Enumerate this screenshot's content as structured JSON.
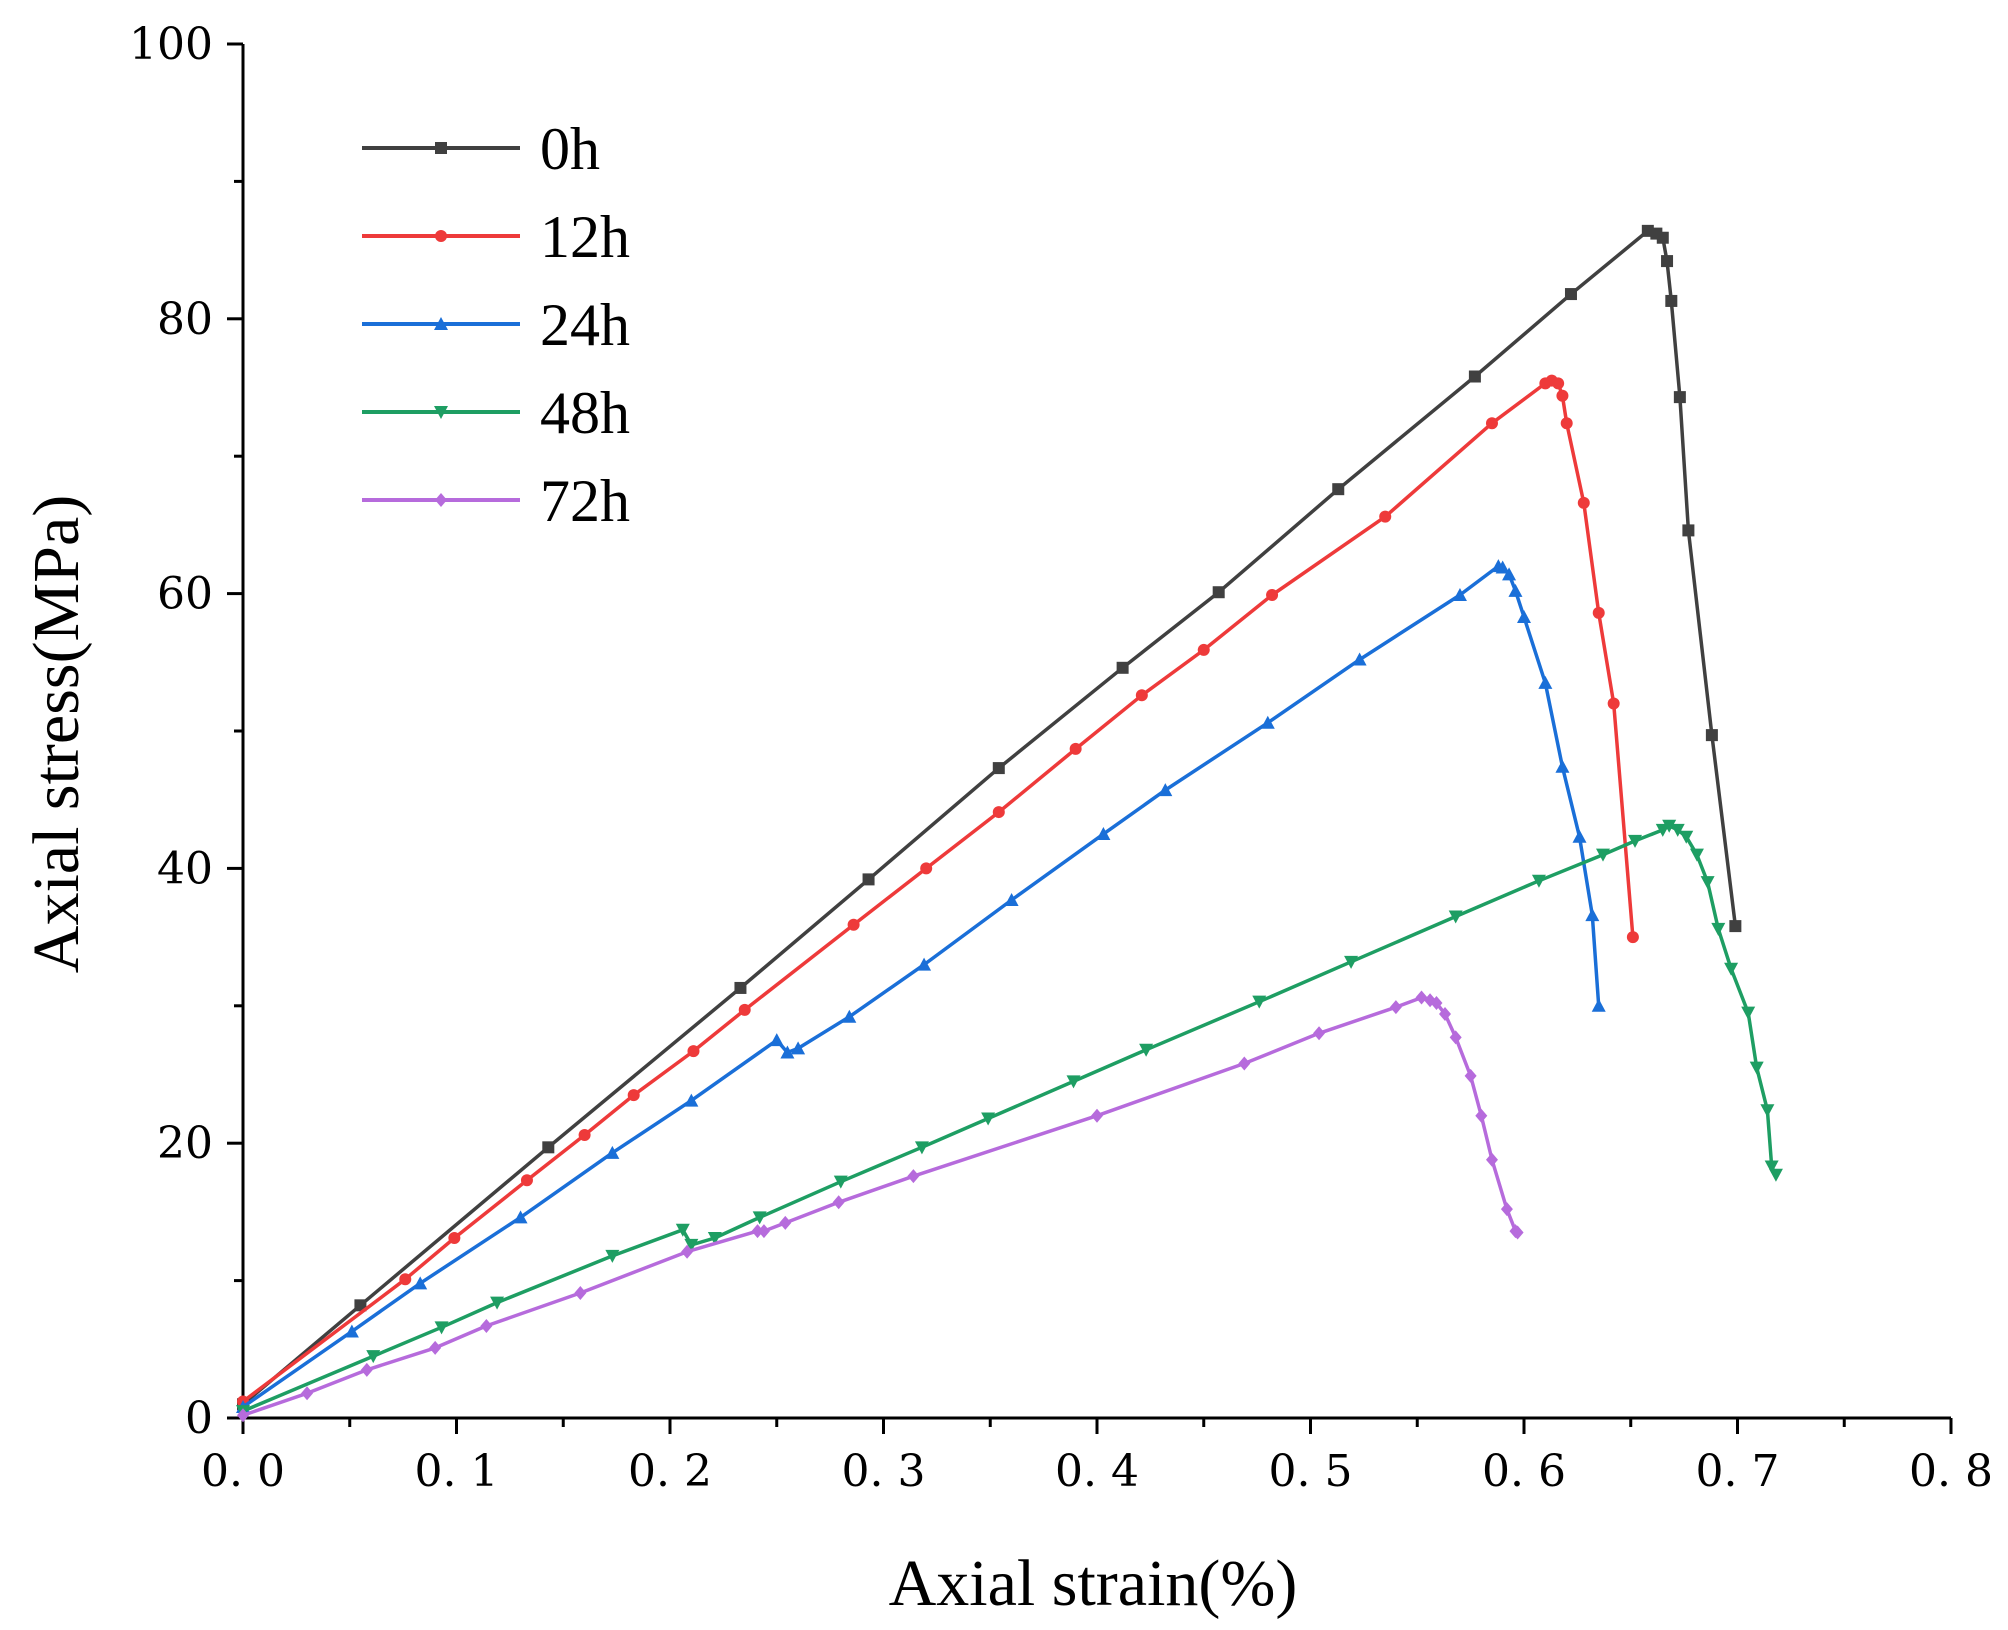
{
  "chart_data": {
    "type": "line",
    "title": "",
    "xlabel": "Axial strain(%)",
    "ylabel": "Axial stress(MPa)",
    "xlim": [
      0.0,
      0.8
    ],
    "ylim": [
      0,
      100
    ],
    "xticks": [
      "0. 0",
      "0. 1",
      "0. 2",
      "0. 3",
      "0. 4",
      "0. 5",
      "0. 6",
      "0. 7",
      "0. 8"
    ],
    "yticks": [
      "0",
      "20",
      "40",
      "60",
      "80",
      "100"
    ],
    "legend_position": "top-left",
    "grid": false,
    "series": [
      {
        "name": "0h",
        "color": "#404040",
        "marker": "square",
        "x": [
          0.0,
          0.055,
          0.143,
          0.233,
          0.293,
          0.354,
          0.412,
          0.457,
          0.513,
          0.577,
          0.622,
          0.658,
          0.662,
          0.665,
          0.667,
          0.669,
          0.673,
          0.677,
          0.688,
          0.699
        ],
        "y": [
          1.0,
          8.2,
          19.7,
          31.3,
          39.2,
          47.3,
          54.6,
          60.1,
          67.6,
          75.8,
          81.8,
          86.4,
          86.2,
          85.9,
          84.2,
          81.3,
          74.3,
          64.6,
          49.7,
          35.8
        ]
      },
      {
        "name": "12h",
        "color": "#ee3a3a",
        "marker": "circle",
        "x": [
          0.0,
          0.076,
          0.099,
          0.133,
          0.16,
          0.183,
          0.211,
          0.235,
          0.286,
          0.32,
          0.354,
          0.39,
          0.421,
          0.45,
          0.482,
          0.535,
          0.585,
          0.61,
          0.613,
          0.616,
          0.618,
          0.62,
          0.628,
          0.635,
          0.642,
          0.651
        ],
        "y": [
          1.2,
          10.1,
          13.1,
          17.3,
          20.6,
          23.5,
          26.7,
          29.7,
          35.9,
          40.0,
          44.1,
          48.7,
          52.6,
          55.9,
          59.9,
          65.6,
          72.4,
          75.3,
          75.5,
          75.3,
          74.4,
          72.4,
          66.6,
          58.6,
          52.0,
          35.0
        ]
      },
      {
        "name": "24h",
        "color": "#1a6fd8",
        "marker": "triangle-up",
        "x": [
          0.0,
          0.051,
          0.083,
          0.13,
          0.173,
          0.21,
          0.25,
          0.255,
          0.26,
          0.284,
          0.319,
          0.36,
          0.403,
          0.432,
          0.48,
          0.523,
          0.57,
          0.588,
          0.59,
          0.593,
          0.596,
          0.6,
          0.61,
          0.618,
          0.626,
          0.632,
          0.635
        ],
        "y": [
          0.8,
          6.3,
          9.8,
          14.6,
          19.3,
          23.1,
          27.5,
          26.6,
          26.9,
          29.2,
          33.0,
          37.7,
          42.5,
          45.7,
          50.6,
          55.2,
          59.9,
          62.0,
          61.9,
          61.4,
          60.2,
          58.3,
          53.5,
          47.4,
          42.3,
          36.6,
          30.0
        ]
      },
      {
        "name": "48h",
        "color": "#1e9e63",
        "marker": "triangle-down",
        "x": [
          0.0,
          0.061,
          0.093,
          0.119,
          0.173,
          0.206,
          0.21,
          0.221,
          0.242,
          0.28,
          0.318,
          0.349,
          0.389,
          0.423,
          0.476,
          0.519,
          0.568,
          0.607,
          0.637,
          0.652,
          0.665,
          0.668,
          0.672,
          0.676,
          0.681,
          0.686,
          0.691,
          0.697,
          0.705,
          0.709,
          0.714,
          0.716,
          0.718
        ],
        "y": [
          0.5,
          4.5,
          6.6,
          8.4,
          11.8,
          13.7,
          12.6,
          13.1,
          14.6,
          17.2,
          19.7,
          21.8,
          24.5,
          26.8,
          30.3,
          33.2,
          36.5,
          39.1,
          41.0,
          42.0,
          42.8,
          43.1,
          42.8,
          42.3,
          41.0,
          39.0,
          35.6,
          32.7,
          29.5,
          25.5,
          22.4,
          18.3,
          17.7
        ]
      },
      {
        "name": "72h",
        "color": "#b66bdc",
        "marker": "diamond",
        "x": [
          0.0,
          0.03,
          0.058,
          0.09,
          0.114,
          0.158,
          0.208,
          0.241,
          0.244,
          0.254,
          0.279,
          0.314,
          0.4,
          0.469,
          0.504,
          0.54,
          0.552,
          0.556,
          0.559,
          0.563,
          0.568,
          0.575,
          0.58,
          0.585,
          0.592,
          0.596,
          0.597
        ],
        "y": [
          0.2,
          1.8,
          3.5,
          5.1,
          6.7,
          9.1,
          12.1,
          13.6,
          13.6,
          14.2,
          15.7,
          17.6,
          22.0,
          25.8,
          28.0,
          29.9,
          30.6,
          30.4,
          30.2,
          29.4,
          27.7,
          24.9,
          22.0,
          18.8,
          15.2,
          13.6,
          13.5
        ]
      }
    ]
  }
}
